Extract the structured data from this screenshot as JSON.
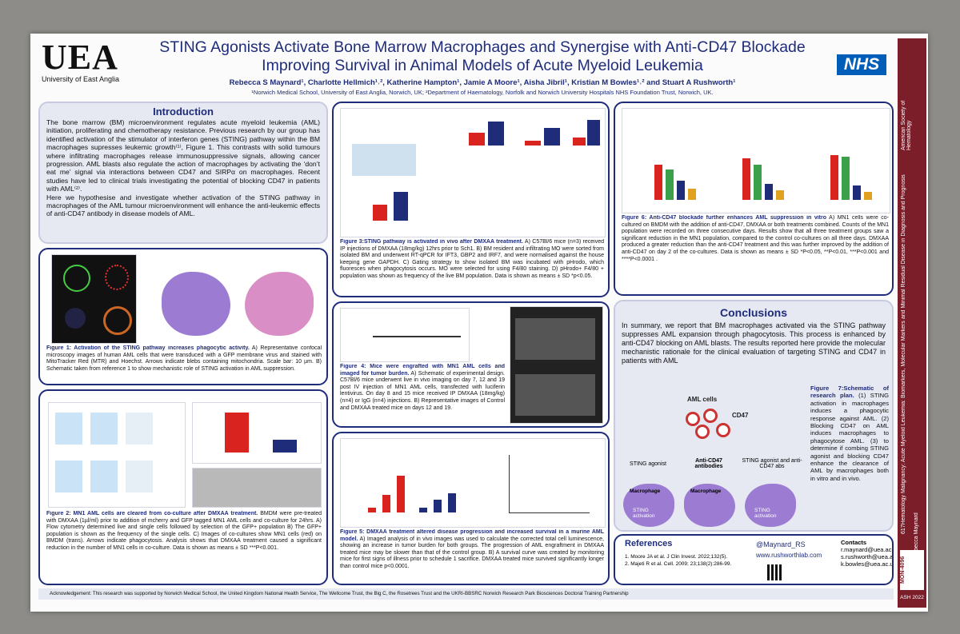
{
  "header": {
    "logo_text": "UEA",
    "logo_sub": "University of East Anglia",
    "title": "STING Agonists Activate Bone Marrow Macrophages and Synergise with Anti-CD47 Blockade Improving Survival in Animal Models of Acute Myeloid Leukemia",
    "authors": "Rebecca S Maynard¹, Charlotte Hellmich¹˒², Katherine Hampton¹, Jamie A Moore¹, Aisha Jibril¹, Kristian M Bowles¹˒² and Stuart A Rushworth¹",
    "affiliations": "¹Norwich Medical School, University of East Anglia, Norwich, UK; ²Department of Haematology, Norfolk and Norwich University Hospitals NHS Foundation Trust, Norwich, UK.",
    "nhs": "NHS"
  },
  "introduction": {
    "heading": "Introduction",
    "paragraphs": [
      "The bone marrow (BM) microenvironment regulates acute myeloid leukemia (AML) initiation, proliferating and chemotherapy resistance. Previous research by our group has identified activation of the stimulator of interferon genes (STING) pathway within the BM macrophages supresses leukemic growth⁽¹⁾, Figure 1. This contrasts with solid tumours where infiltrating macrophages release immunosuppressive signals, allowing cancer progression. AML blasts also regulate the action of macrophages by activating the ‘don’t eat me’ signal via interactions between CD47 and SIRPα on macrophages. Recent studies have led to clinical trials investigating the potential of blocking CD47 in patients with AML⁽²⁾.",
      "Here we hypothesise and investigate whether activation of the STING pathway in macrophages of the AML tumour microenvironment will enhance the anti-leukemic effects of anti-CD47 antibody in disease models of AML."
    ]
  },
  "figures": [
    {
      "label": "Figure 1: Activation of the STING pathway increases phagocytic activity.",
      "text": "A) Representative confocal microscopy images of human AML cells that were transduced with a GFP membrane virus and stained with MitoTracker Red (MTR) and Hoechst. Arrows indicate blebs containing mitochondria. Scale bar: 10 µm. B) Schematic taken from reference 1 to show mechanistic role of STING activation in AML suppression."
    },
    {
      "label": "Figure 2: MN1 AML cells are cleared from co-culture after DMXAA treatment.",
      "text": "BMDM were pre-treated with DMXAA (1µl/ml) prior to addition of mcherry and GFP tagged MN1 AML cells and co-culture for 24hrs. A) Flow cytometry determined live and single cells followed by selection of the GFP+ population B) The GFP+ population is shown as the frequency of the single cells. C) Images of co-cultures show MN1 cells (red) on BMDM (trans). Arrows indicate phagocytosis. Analysis shows that DMXAA treatment caused a significant reduction in the number of MN1 cells in co-culture. Data is shown as means ± SD ***P<0.001."
    },
    {
      "label": "Figure 3:STING pathway is activated in vivo after DMXAA treatment.",
      "text": "A) C57Bl/6 mice (n=3) received IP injections of DMXAA (18mg/kg) 12hrs prior to Sch1. B) BM resident and infiltrating MO were sorted from isolated BM and underwent RT-qPCR for IFT3, GBP2 and IRF7, and were normalised against the house keeping gene GAPDH. C) Gating strategy to show isolated BM was incubated with pHrodo, which fluoresces when phagocytosis occurs. MO were selected for using F4/80 staining. D) pHrodo+ F4/80 + population was shown as frequency of the live BM population. Data is shown as means ± SD *p<0.05."
    },
    {
      "label": "Figure 4: Mice were engrafted with MN1 AML cells and imaged for tumor burden.",
      "text": "A) Schematic of experimental design. C57Bl/6 mice underwent live in vivo imaging on day 7, 12 and 19 post IV injection of MN1 AML cells, transfected with luciferin lentivirus. On day 8 and 15 mice received IP DMXAA (18mg/kg) (n=4) or IgG (n=4) injections. B) Representative images of Control and DMXAA treated mice on days 12 and 19."
    },
    {
      "label": "Figure 5: DMXAA treatment altered disease progression and increased survival in a murine AML model.",
      "text": "A) Imaged analysis of in vivo images was used to calculate the corrected total cell luminescence, showing an increase in tumor burden for both groups. The progression of AML engraftment in DMXAA treated mice may be slower than that of the control group. B) A survival curve was created by monitoring mice for first signs of illness prior to schedule 1 sacrifice. DMXAA treated mice survived significantly longer than control mice p<0.0001."
    },
    {
      "label": "Figure 6: Anti-CD47 blockade further enhances AML suppression in vitro",
      "text": "A) MN1 cells were co-cultured on BMDM with the addition of anti-CD47, DMXAA or both treatments combined. Counts of the MN1 population were recorded on three consecutive days. Results show that all three treatment groups saw a significant reduction in the MN1 population, compared to the control co-cultures on all three days. DMXAA produced a greater reduction than the anti-CD47 treatment and this was further improved by the addition of anti-CD47 on day 2 of the co-cultures. Data is shown as means ± SD *P<0.05, **P<0.01, ***P<0.001 and ****P<0.0001 ."
    },
    {
      "label": "Figure 7:Schematic of research plan.",
      "text": "(1) STING activation in macrophages induces a phagocytic response against AML. (2) Blocking CD47 on AML induces macrophages to phagocytose AML. (3) to determine if combing STING agonist and blocking CD47 enhance the clearance of AML by macrophages both in vitro and in vivo."
    }
  ],
  "conclusions": {
    "heading": "Conclusions",
    "text": "In summary, we report that BM macrophages activated via the STING pathway suppresses AML expansion through phagocytosis. This process is enhanced by anti-CD47 blocking on AML blasts. The results reported here provide the molecular mechanistic rationale for the clinical evaluation of targeting STING and CD47 in patients with AML"
  },
  "schematic": {
    "aml": "AML cells",
    "cd47": "CD47",
    "step1": "STING agonist",
    "step2": "Anti-CD47 antibodies",
    "step3": "STING agonist and anti-CD47 abs",
    "macrophage": "Macrophage",
    "activation": "STING activation"
  },
  "references": {
    "heading": "References",
    "items": [
      "1. Moore JA et al. J Clin Invest. 2022;132(5).",
      "2. Majeti R et al. Cell. 2009; 23;138(2):286-99."
    ]
  },
  "contacts": {
    "twitter": "@Maynard_RS",
    "website": "www.rushworthlab.com",
    "heading": "Contacts",
    "emails": [
      "r.maynard@uea.ac.uk",
      "s.rushworth@uea.ac.uk",
      "k.bowles@uea.ac.uk"
    ]
  },
  "acknowledgement": "Acknowledgement: This research was supported by Norwich Medical School, the United Kingdom National Health Service, The Wellcome Trust, the Big C, the Rosetrees Trust and the UKRI-BBSRC Norwich Research Park Biosciences Doctoral Training Partnership",
  "side": {
    "society": "American Society of Hematology",
    "topic": "617Hematology Malignancy: Acute Myeloid Leukemia: Biomarkers, Molecular Markers and Minimal Residual Disease in Diagnosis and Prognosis",
    "presenter": "Rebecca Maynard",
    "code": "MON-4096",
    "meeting": "ASH 2022"
  }
}
